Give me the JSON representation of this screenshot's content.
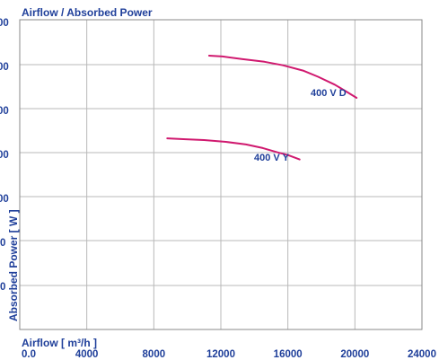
{
  "chart_data": {
    "type": "line",
    "title": "Airflow / Absorbed Power",
    "xlabel": "Airflow [ m³/h ]",
    "ylabel": "Absorbed Power [ W ]",
    "xlim": [
      0,
      24000
    ],
    "x_ticks": [
      "0.0",
      "4000",
      "8000",
      "12000",
      "16000",
      "20000",
      "24000"
    ],
    "y_tick_labels_partial": [
      "00",
      "00",
      "00",
      "00",
      "00",
      "0",
      "0"
    ],
    "grid": true,
    "legend": "none",
    "series": [
      {
        "name": "400 V D",
        "color": "#d0196f",
        "x": [
          11300,
          12100,
          13300,
          14600,
          15700,
          16900,
          17800,
          18800,
          19500,
          20100
        ],
        "y": [
          3.48,
          3.47,
          3.44,
          3.41,
          3.37,
          3.31,
          3.24,
          3.15,
          3.07,
          3.0
        ]
      },
      {
        "name": "400 V Y",
        "color": "#d0196f",
        "x": [
          8800,
          9900,
          11000,
          12300,
          13500,
          14500,
          15400,
          16000,
          16700
        ],
        "y": [
          2.54,
          2.53,
          2.52,
          2.5,
          2.47,
          2.43,
          2.38,
          2.35,
          2.3
        ]
      }
    ]
  }
}
